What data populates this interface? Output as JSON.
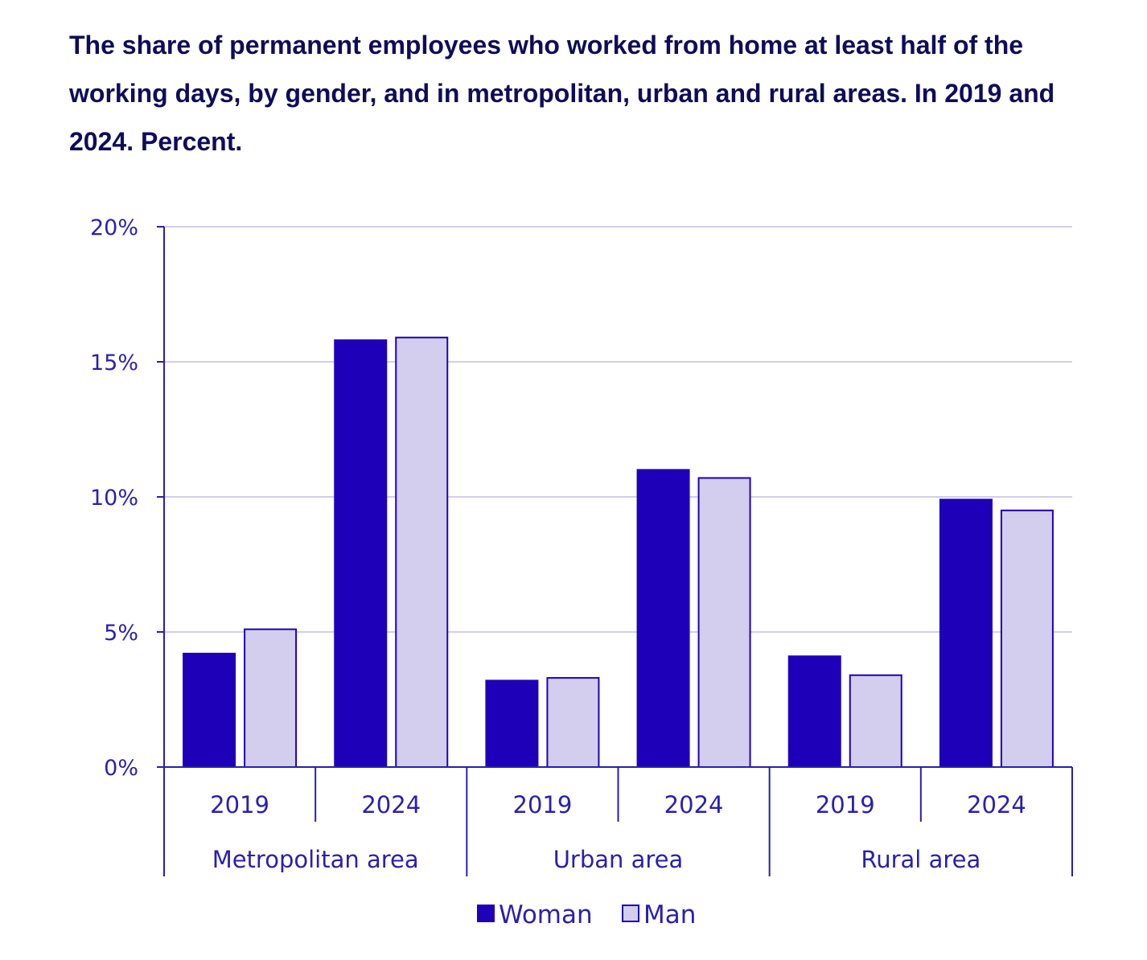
{
  "title": "The share of permanent employees who worked from home at least half of the working days, by gender, and in metropolitan, urban and rural areas. In 2019 and 2024. Percent.",
  "colors": {
    "woman": "#1e00b9",
    "man": "#d3cdee",
    "axis": "#2a1fae",
    "grid": "#d3cdee",
    "text": "#2a1fae",
    "title": "#0f0c5a"
  },
  "chart_data": {
    "type": "bar",
    "title": "The share of permanent employees who worked from home at least half of the working days, by gender, and in metropolitan, urban and rural areas. In 2019 and 2024. Percent.",
    "groups": [
      {
        "label": "Metropolitan area",
        "categories": [
          "2019",
          "2024"
        ]
      },
      {
        "label": "Urban area",
        "categories": [
          "2019",
          "2024"
        ]
      },
      {
        "label": "Rural area",
        "categories": [
          "2019",
          "2024"
        ]
      }
    ],
    "series": [
      {
        "name": "Woman",
        "color": "#1e00b9",
        "values": [
          4.2,
          15.8,
          3.2,
          11.0,
          4.1,
          9.9
        ]
      },
      {
        "name": "Man",
        "color": "#d3cdee",
        "values": [
          5.1,
          15.9,
          3.3,
          10.7,
          3.4,
          9.5
        ]
      }
    ],
    "ylim": [
      0,
      20
    ],
    "yticks": [
      0,
      5,
      10,
      15,
      20
    ],
    "ytick_labels": [
      "0%",
      "5%",
      "10%",
      "15%",
      "20%"
    ],
    "grid": true,
    "legend": "bottom"
  }
}
